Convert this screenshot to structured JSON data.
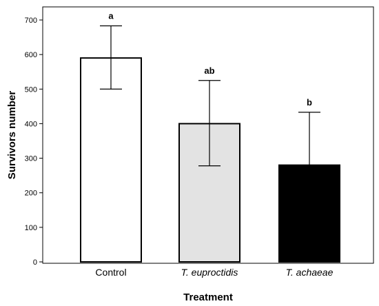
{
  "chart_data": {
    "type": "bar",
    "categories": [
      "Control",
      "T. euproctidis",
      "T. achaeae"
    ],
    "category_italic": [
      false,
      true,
      true
    ],
    "values": [
      590,
      400,
      280
    ],
    "error_upper": [
      683,
      525,
      433
    ],
    "error_lower": [
      500,
      278,
      280
    ],
    "significance_labels": [
      "a",
      "ab",
      "b"
    ],
    "bar_colors": [
      "#ffffff",
      "#e3e3e3",
      "#000000"
    ],
    "xlabel": "Treatment",
    "ylabel": "Survivors number",
    "ylim": [
      0,
      700
    ],
    "yticks": [
      0,
      100,
      200,
      300,
      400,
      500,
      600,
      700
    ],
    "grid": false,
    "legend": "none"
  }
}
